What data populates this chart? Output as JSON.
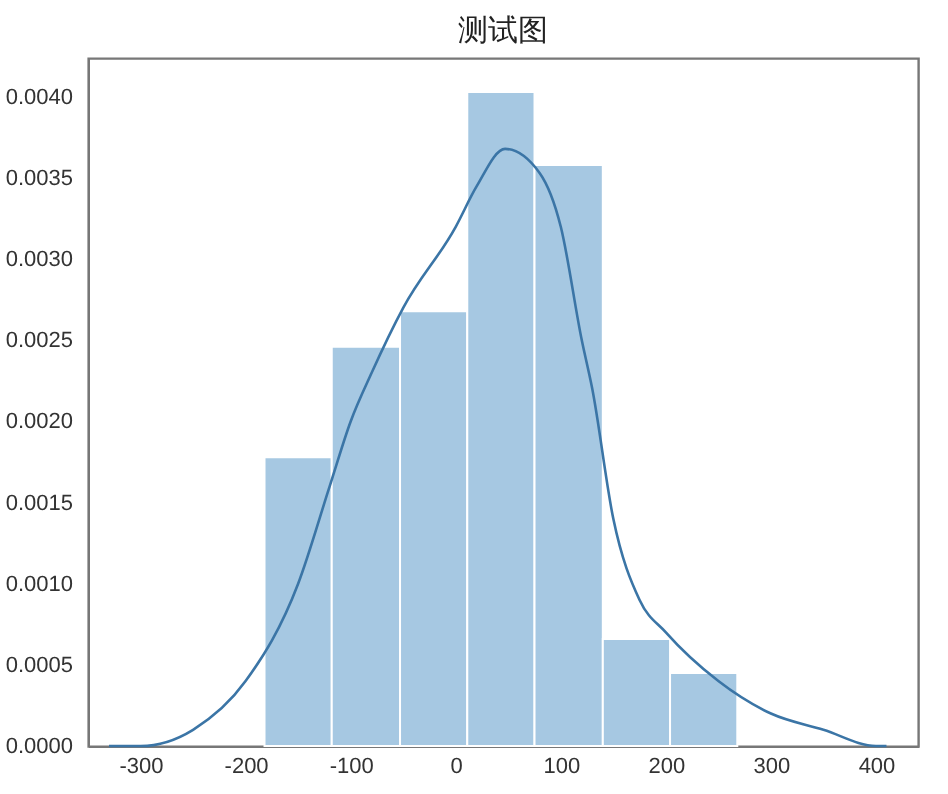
{
  "chart_data": {
    "type": "histogram",
    "title": "测试图",
    "color": "#a6c8e2",
    "bins": [
      -182,
      -118,
      -53,
      11,
      75,
      140,
      204,
      268
    ],
    "values": [
      0.00178,
      0.00246,
      0.00268,
      0.00403,
      0.00358,
      0.00066,
      0.00045
    ],
    "series": [
      {
        "type": "line",
        "color": "#3b75a6",
        "x": [
          -330,
          -300,
          -250,
          -200,
          -150,
          -120,
          -100,
          -80,
          -50,
          0,
          20,
          47,
          80,
          100,
          120,
          130,
          150,
          175,
          200,
          250,
          300,
          350,
          400,
          410
        ],
        "values": [
          0,
          0,
          0.0001,
          0.0004,
          0.001,
          0.0016,
          0.002,
          0.0023,
          0.0027,
          0.0032,
          0.00345,
          0.00368,
          0.00353,
          0.0032,
          0.0025,
          0.0022,
          0.0014,
          0.0009,
          0.0007,
          0.0004,
          0.0002,
          0.0001,
          0,
          0
        ]
      }
    ],
    "xlim": [
      -350,
      440
    ],
    "xticks": [
      -300,
      -200,
      -100,
      0,
      100,
      200,
      300,
      400
    ],
    "ylim": [
      0,
      0.00424
    ],
    "yticks": [
      {
        "value": 0,
        "label": "0.0000"
      },
      {
        "value": 0.0005,
        "label": "0.0005"
      },
      {
        "value": 0.001,
        "label": "0.0010"
      },
      {
        "value": 0.0015,
        "label": "0.0015"
      },
      {
        "value": 0.002,
        "label": "0.0020"
      },
      {
        "value": 0.0025,
        "label": "0.0025"
      },
      {
        "value": 0.003,
        "label": "0.0030"
      },
      {
        "value": 0.0035,
        "label": "0.0035"
      },
      {
        "value": 0.004,
        "label": "0.0040"
      }
    ],
    "grid": false,
    "legend": false
  }
}
